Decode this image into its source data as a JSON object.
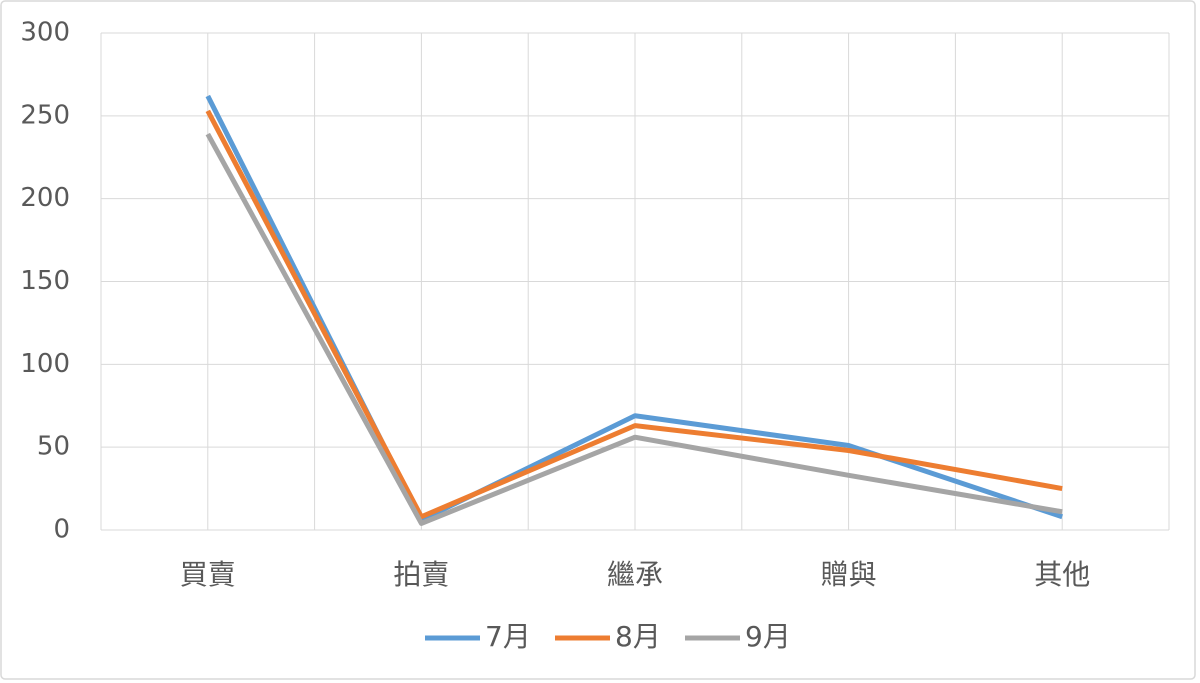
{
  "chart_data": {
    "type": "line",
    "categories": [
      "買賣",
      "拍賣",
      "繼承",
      "贈與",
      "其他"
    ],
    "series": [
      {
        "name": "7月",
        "color": "#5b9bd5",
        "values": [
          262,
          6,
          69,
          51,
          8
        ]
      },
      {
        "name": "8月",
        "color": "#ed7d31",
        "values": [
          253,
          8,
          63,
          48,
          25
        ]
      },
      {
        "name": "9月",
        "color": "#a5a5a5",
        "values": [
          239,
          4,
          56,
          33,
          11
        ]
      }
    ],
    "ylim": [
      0,
      300
    ],
    "yticks": [
      0,
      50,
      100,
      150,
      200,
      250,
      300
    ],
    "grid": true,
    "legend": "bottom"
  }
}
